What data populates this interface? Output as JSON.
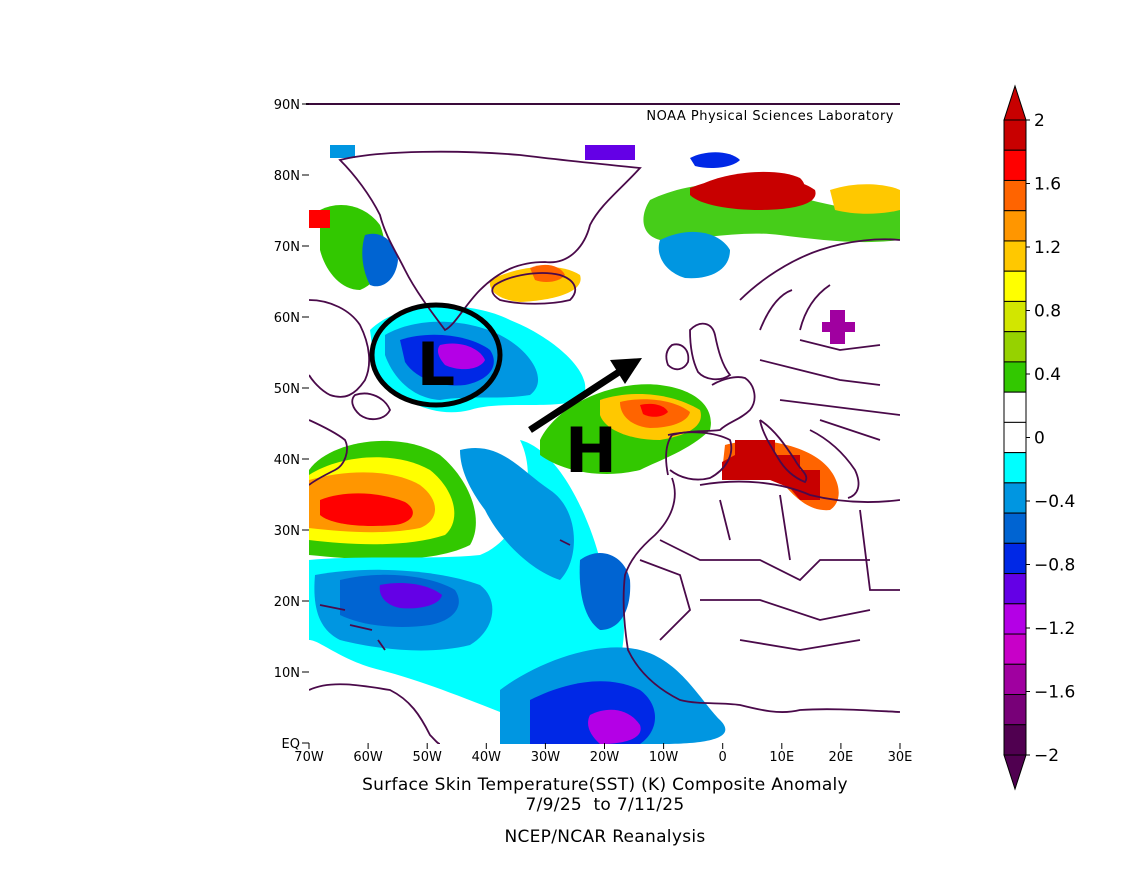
{
  "map": {
    "credit": "NOAA Physical Sciences Laboratory",
    "lat_labels": [
      "90N",
      "80N",
      "70N",
      "60N",
      "50N",
      "40N",
      "30N",
      "20N",
      "10N",
      "EQ"
    ],
    "lon_labels": [
      "70W",
      "60W",
      "50W",
      "40W",
      "30W",
      "20W",
      "10W",
      "0",
      "10E",
      "20E",
      "30E"
    ],
    "extent": {
      "lon_min": -70,
      "lon_max": 30,
      "lat_min": 0,
      "lat_max": 90
    },
    "annotations": {
      "low": "L",
      "high": "H"
    }
  },
  "caption": {
    "line1": "Surface Skin Temperature(SST) (K) Composite Anomaly",
    "line2": "7/9/25  to 7/11/25",
    "line3": "NCEP/NCAR Reanalysis"
  },
  "colorbar": {
    "labels": [
      "2",
      "1.6",
      "1.2",
      "0.8",
      "0.4",
      "0",
      "−0.4",
      "−0.8",
      "−1.2",
      "−1.6",
      "−2"
    ],
    "colors": [
      "#c80000",
      "#ff0000",
      "#ff6400",
      "#ff9600",
      "#ffc800",
      "#ffff00",
      "#d2e600",
      "#96d200",
      "#32c800",
      "#ffffff",
      "#ffffff",
      "#00ffff",
      "#0096e1",
      "#0064d2",
      "#0028e6",
      "#6400e6",
      "#b400e6",
      "#c800c8",
      "#a000a0",
      "#780078",
      "#500050"
    ]
  }
}
